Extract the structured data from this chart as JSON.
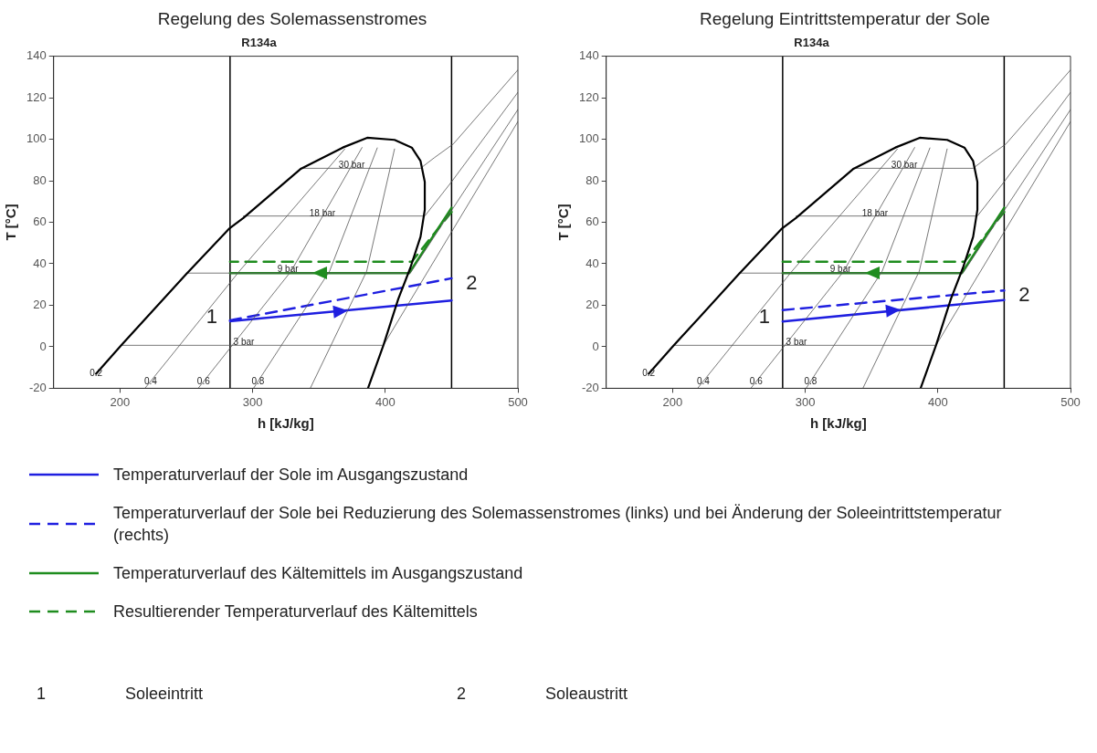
{
  "chart_data": [
    {
      "type": "line",
      "title": "Regelung des Solemassenstromes",
      "subtitle": "R134a",
      "xlabel": "h [kJ/kg]",
      "ylabel": "T [°C]",
      "xlim": [
        150,
        500
      ],
      "xticks": [
        200,
        300,
        400,
        500
      ],
      "ylim": [
        -20,
        140
      ],
      "yticks": [
        -20,
        0,
        20,
        40,
        60,
        80,
        100,
        120,
        140
      ],
      "grid": false,
      "legend": "bottom",
      "ref_lines": [
        {
          "axis": "x",
          "value": 283,
          "color": "#000000"
        },
        {
          "axis": "x",
          "value": 450,
          "color": "#000000"
        }
      ],
      "annotations": [
        {
          "text": "30 bar",
          "x": 374.7,
          "y": 87.5
        },
        {
          "text": "18 bar",
          "x": 352.6,
          "y": 64
        },
        {
          "text": "9 bar",
          "x": 326.6,
          "y": 37.2
        },
        {
          "text": "3 bar",
          "x": 293.4,
          "y": 2
        },
        {
          "text": "0.2",
          "x": 182,
          "y": -13
        },
        {
          "text": "0.4",
          "x": 223.1,
          "y": -16.7
        },
        {
          "text": "0.6",
          "x": 263,
          "y": -16.7
        },
        {
          "text": "0.8",
          "x": 304,
          "y": -16.7
        },
        {
          "text": "1",
          "x": 283,
          "y": 12.3
        },
        {
          "text": "2",
          "x": 450,
          "y": 33
        },
        "1 Soleeintritt",
        "2 Soleaustritt"
      ],
      "series": [
        {
          "color": "#000000",
          "x": [
            182,
            201,
            250,
            282.5,
            293,
            336,
            368,
            386.4,
            407,
            420,
            426.6,
            429.8,
            429.8,
            426.6,
            418.9,
            409.8,
            398.6,
            387
          ],
          "values": [
            -13,
            0.7,
            35,
            57,
            62,
            85.6,
            96,
            100.7,
            99.7,
            96,
            89.5,
            79.5,
            66,
            53,
            38,
            23,
            0.7,
            -20
          ]
        },
        {
          "color": "#555555",
          "x": [
            336,
            426.6,
            436.8,
            451.3,
            500
          ],
          "values": [
            86,
            86,
            91,
            97.7,
            133.4
          ]
        },
        {
          "color": "#555555",
          "x": [
            293,
            429.8,
            450,
            500
          ],
          "values": [
            63,
            63,
            79.5,
            122.6
          ]
        },
        {
          "color": "#555555",
          "x": [
            250,
            418.9,
            500
          ],
          "values": [
            35.5,
            35.5,
            114.3
          ]
        },
        {
          "color": "#555555",
          "x": [
            201,
            398.6,
            500
          ],
          "values": [
            0.7,
            0.7,
            108.5
          ]
        },
        {
          "color": "#555555",
          "x": [
            218.9,
            290,
            369.5
          ],
          "values": [
            -20,
            36.4,
            95.3
          ]
        },
        {
          "color": "#555555",
          "x": [
            259,
            329,
            382.5
          ],
          "values": [
            -20,
            36.4,
            96
          ]
        },
        {
          "color": "#555555",
          "x": [
            300.7,
            358,
            394
          ],
          "values": [
            -20,
            36.4,
            95.8
          ]
        },
        {
          "color": "#555555",
          "x": [
            343.5,
            386,
            407
          ],
          "values": [
            -20,
            36.4,
            95.3
          ]
        },
        {
          "name": "Temperaturverlauf der Sole im Ausgangszustand",
          "color": "#1f1fe0",
          "x": [
            283,
            450
          ],
          "values": [
            12.3,
            22.3
          ]
        },
        {
          "name": "Temperaturverlauf der Sole bei Reduzierung des Solemassenstromes (links) und bei Änderung der Soleeintrittstemperatur (rechts)",
          "color": "#1f1fe0",
          "line_style": "dashed",
          "x": [
            283,
            450
          ],
          "values": [
            12.7,
            33
          ]
        },
        {
          "name": "Temperaturverlauf des Kältemittels im Ausgangszustand",
          "color": "#1e8c1e",
          "x": [
            450,
            418,
            283
          ],
          "values": [
            67,
            35.5,
            35.5
          ]
        },
        {
          "name": "Resultierender Temperaturverlauf des Kältemittels",
          "color": "#1e8c1e",
          "line_style": "dashed",
          "x": [
            450,
            420,
            283
          ],
          "values": [
            65,
            41,
            41
          ]
        }
      ]
    },
    {
      "type": "line",
      "title": "Regelung Eintrittstemperatur der Sole",
      "subtitle": "R134a",
      "xlabel": "h [kJ/kg]",
      "ylabel": "T [°C]",
      "xlim": [
        150,
        500
      ],
      "xticks": [
        200,
        300,
        400,
        500
      ],
      "ylim": [
        -20,
        140
      ],
      "yticks": [
        -20,
        0,
        20,
        40,
        60,
        80,
        100,
        120,
        140
      ],
      "grid": false,
      "ref_lines": [
        {
          "axis": "x",
          "value": 283,
          "color": "#000000"
        },
        {
          "axis": "x",
          "value": 450,
          "color": "#000000"
        }
      ],
      "annotations": [
        {
          "text": "30 bar",
          "x": 374.7,
          "y": 87.5
        },
        {
          "text": "18 bar",
          "x": 352.6,
          "y": 64
        },
        {
          "text": "9 bar",
          "x": 326.6,
          "y": 37.2
        },
        {
          "text": "3 bar",
          "x": 293.4,
          "y": 2
        },
        {
          "text": "0.2",
          "x": 182,
          "y": -13
        },
        {
          "text": "0.4",
          "x": 223.1,
          "y": -16.7
        },
        {
          "text": "0.6",
          "x": 263,
          "y": -16.7
        },
        {
          "text": "0.8",
          "x": 304,
          "y": -16.7
        },
        {
          "text": "1",
          "x": 283,
          "y": 12.2
        },
        {
          "text": "2",
          "x": 450,
          "y": 27.1
        }
      ],
      "series": [
        {
          "color": "#000000",
          "x": [
            182,
            201,
            250,
            282.5,
            293,
            336,
            368,
            386.4,
            407,
            420,
            426.6,
            429.8,
            429.8,
            426.6,
            418.9,
            409.8,
            398.6,
            387
          ],
          "values": [
            -13,
            0.7,
            35,
            57,
            62,
            85.6,
            96,
            100.7,
            99.7,
            96,
            89.5,
            79.5,
            66,
            53,
            38,
            23,
            0.7,
            -20
          ]
        },
        {
          "color": "#555555",
          "x": [
            336,
            426.6,
            436.8,
            451.3,
            500
          ],
          "values": [
            86,
            86,
            91,
            97.7,
            133.4
          ]
        },
        {
          "color": "#555555",
          "x": [
            293,
            429.8,
            450,
            500
          ],
          "values": [
            63,
            63,
            79.5,
            122.6
          ]
        },
        {
          "color": "#555555",
          "x": [
            250,
            418.9,
            500
          ],
          "values": [
            35.5,
            35.5,
            114.3
          ]
        },
        {
          "color": "#555555",
          "x": [
            201,
            398.6,
            500
          ],
          "values": [
            0.7,
            0.7,
            108.5
          ]
        },
        {
          "color": "#555555",
          "x": [
            218.9,
            290,
            369.5
          ],
          "values": [
            -20,
            36.4,
            95.3
          ]
        },
        {
          "color": "#555555",
          "x": [
            259,
            329,
            382.5
          ],
          "values": [
            -20,
            36.4,
            96
          ]
        },
        {
          "color": "#555555",
          "x": [
            300.7,
            358,
            394
          ],
          "values": [
            -20,
            36.4,
            95.8
          ]
        },
        {
          "color": "#555555",
          "x": [
            343.5,
            386,
            407
          ],
          "values": [
            -20,
            36.4,
            95.3
          ]
        },
        {
          "color": "#1f1fe0",
          "x": [
            283,
            450
          ],
          "values": [
            12.2,
            22.5
          ]
        },
        {
          "color": "#1f1fe0",
          "line_style": "dashed",
          "x": [
            283,
            450
          ],
          "values": [
            17.7,
            27.1
          ]
        },
        {
          "color": "#1e8c1e",
          "x": [
            450,
            418,
            283
          ],
          "values": [
            67,
            35.5,
            35.5
          ]
        },
        {
          "color": "#1e8c1e",
          "line_style": "dashed",
          "x": [
            450,
            420,
            283
          ],
          "values": [
            65,
            41,
            41
          ]
        }
      ]
    }
  ]
}
